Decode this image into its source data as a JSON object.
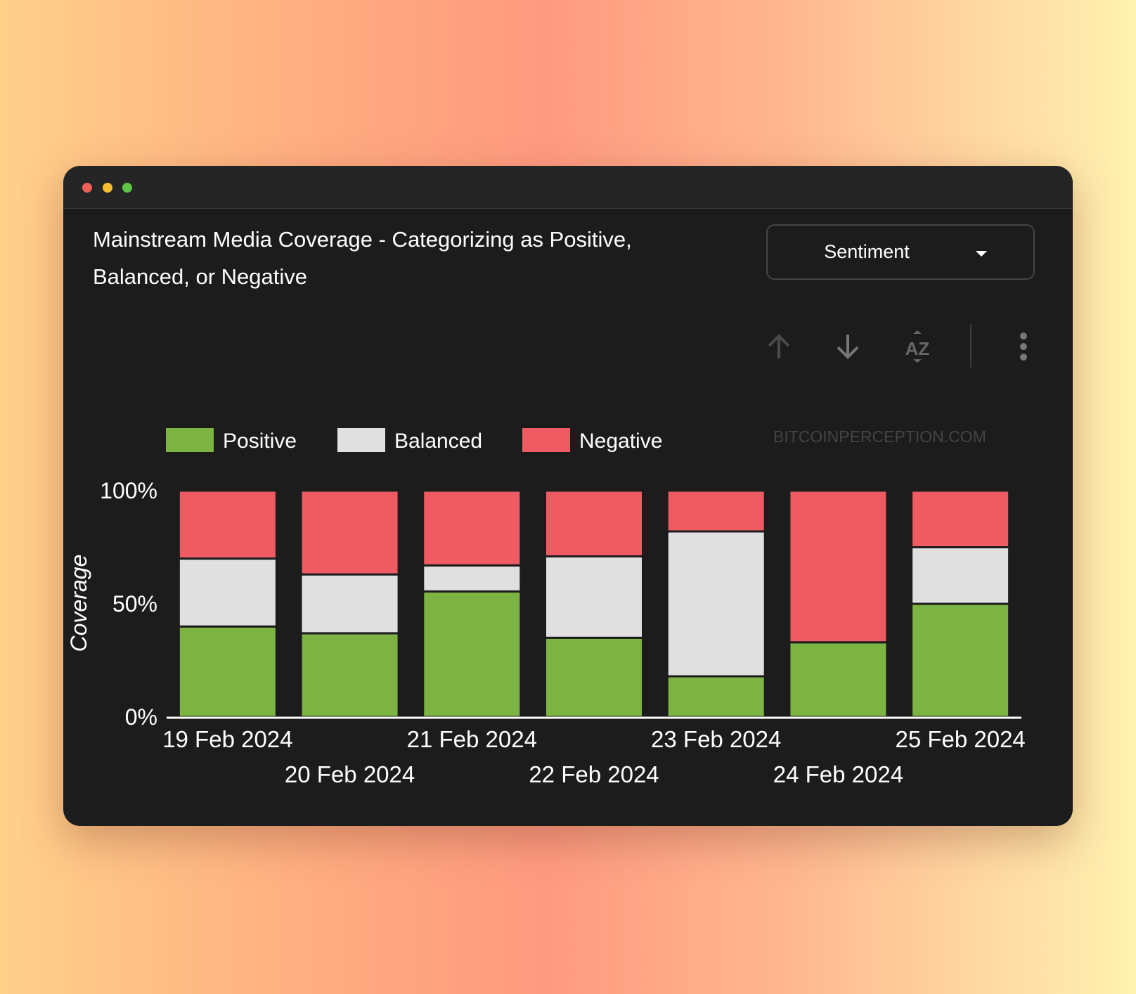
{
  "window": {
    "controls": [
      "close",
      "minimize",
      "maximize"
    ],
    "colors": {
      "close": "#ed5f57",
      "minimize": "#f5bd30",
      "maximize": "#5fc443"
    }
  },
  "header": {
    "title": "Mainstream Media Coverage - Categorizing as Positive, Balanced, or Negative"
  },
  "dropdown": {
    "selected": "Sentiment"
  },
  "toolbar": {
    "icons": [
      "arrow-up-icon",
      "arrow-down-icon",
      "sort-az-icon",
      "more-vert-icon"
    ]
  },
  "watermark": "BITCOINPERCEPTION.COM",
  "chart_data": {
    "type": "bar",
    "stacked": true,
    "title": "Mainstream Media Coverage - Categorizing as Positive, Balanced, or Negative",
    "xlabel": "",
    "ylabel": "Coverage",
    "ylim": [
      0,
      100
    ],
    "yticks": [
      "0%",
      "50%",
      "100%"
    ],
    "legend_position": "top-left",
    "categories": [
      "19 Feb 2024",
      "20 Feb 2024",
      "21 Feb 2024",
      "22 Feb 2024",
      "23 Feb 2024",
      "24 Feb 2024",
      "25 Feb 2024"
    ],
    "series": [
      {
        "name": "Positive",
        "color": "#7cb342",
        "values": [
          40,
          37,
          55.5,
          35,
          18,
          33,
          50
        ]
      },
      {
        "name": "Balanced",
        "color": "#e0e0e0",
        "values": [
          30,
          26,
          11.5,
          36,
          64,
          0,
          25
        ]
      },
      {
        "name": "Negative",
        "color": "#ef5b63",
        "values": [
          30,
          37,
          33,
          29,
          18,
          67,
          25
        ]
      }
    ]
  }
}
